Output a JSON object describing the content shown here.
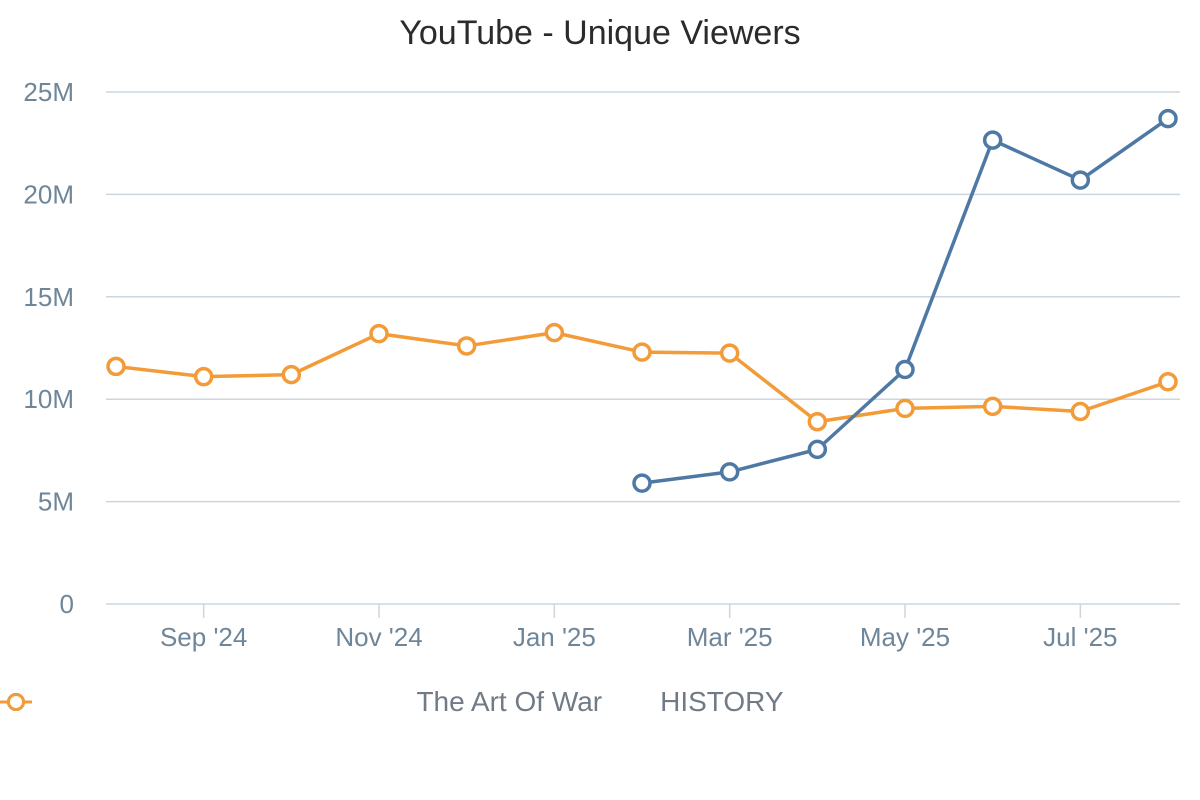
{
  "chart_data": {
    "type": "line",
    "title": "YouTube - Unique Viewers",
    "x": [
      "Aug '24",
      "Sep '24",
      "Oct '24",
      "Nov '24",
      "Dec '24",
      "Jan '25",
      "Feb '25",
      "Mar '25",
      "Apr '25",
      "May '25",
      "Jun '25",
      "Jul '25",
      "Aug '25"
    ],
    "x_tick_labels": [
      "Sep '24",
      "Nov '24",
      "Jan '25",
      "Mar '25",
      "May '25",
      "Jul '25"
    ],
    "y_tick_labels": [
      "0",
      "5M",
      "10M",
      "15M",
      "20M",
      "25M"
    ],
    "ylim": [
      0,
      25000000
    ],
    "series": [
      {
        "name": "The Art Of War",
        "color": "#4f79a5",
        "values": [
          null,
          null,
          null,
          null,
          null,
          null,
          5900000,
          6450000,
          7550000,
          11450000,
          22650000,
          20700000,
          23700000
        ]
      },
      {
        "name": "HISTORY",
        "color": "#f29b38",
        "values": [
          11600000,
          11100000,
          11200000,
          13200000,
          12600000,
          13250000,
          12300000,
          12250000,
          8900000,
          9550000,
          9650000,
          9400000,
          10850000
        ]
      }
    ],
    "grid": true,
    "legend_position": "bottom-center"
  }
}
